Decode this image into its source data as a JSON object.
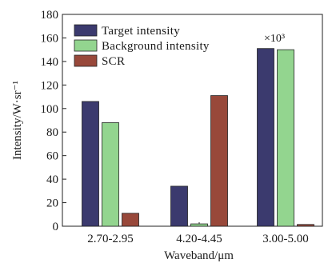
{
  "chart_data": {
    "type": "bar",
    "title": "",
    "xlabel": "Waveband/μm",
    "ylabel": "Intensity/W·sr⁻¹",
    "categories": [
      "2.70-2.95",
      "4.20-4.45",
      "3.00-5.00"
    ],
    "ylim": [
      0,
      180
    ],
    "yticks": [
      0,
      20,
      40,
      60,
      80,
      100,
      120,
      140,
      160,
      180
    ],
    "series": [
      {
        "name": "Target intensity",
        "values": [
          106,
          34,
          151
        ],
        "color": "#3b3a6e"
      },
      {
        "name": "Background intensity",
        "values": [
          88,
          2,
          150
        ],
        "color": "#93d58f"
      },
      {
        "name": "SCR",
        "values": [
          11,
          111,
          1.5
        ],
        "color": "#98483a"
      }
    ],
    "annotation": "×10³",
    "legend_position": "top-left",
    "grid": false
  }
}
